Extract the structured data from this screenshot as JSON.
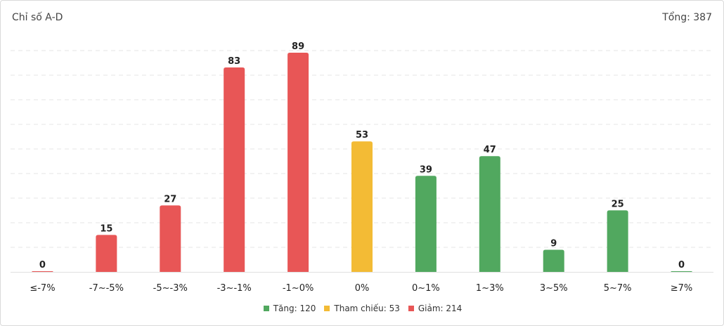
{
  "header": {
    "title": "Chỉ số A-D",
    "total_label": "Tổng: 387"
  },
  "colors": {
    "decline": "#e85656",
    "reference": "#f3bb35",
    "advance": "#51a85f"
  },
  "legend": [
    {
      "label": "Tăng: 120",
      "color": "#51a85f"
    },
    {
      "label": "Tham chiếu: 53",
      "color": "#f3bb35"
    },
    {
      "label": "Giảm: 214",
      "color": "#e85656"
    }
  ],
  "chart_data": {
    "type": "bar",
    "title": "Chỉ số A-D",
    "categories": [
      "≤-7%",
      "-7~-5%",
      "-5~-3%",
      "-3~-1%",
      "-1~0%",
      "0%",
      "0~1%",
      "1~3%",
      "3~5%",
      "5~7%",
      "≥7%"
    ],
    "values": [
      0,
      15,
      27,
      83,
      89,
      53,
      39,
      47,
      9,
      25,
      0
    ],
    "bar_colors": [
      "#e85656",
      "#e85656",
      "#e85656",
      "#e85656",
      "#e85656",
      "#f3bb35",
      "#51a85f",
      "#51a85f",
      "#51a85f",
      "#51a85f",
      "#51a85f"
    ],
    "xlabel": "",
    "ylabel": "",
    "ylim": [
      0,
      89
    ],
    "grid": true,
    "data_labels": true,
    "legend_position": "bottom"
  }
}
